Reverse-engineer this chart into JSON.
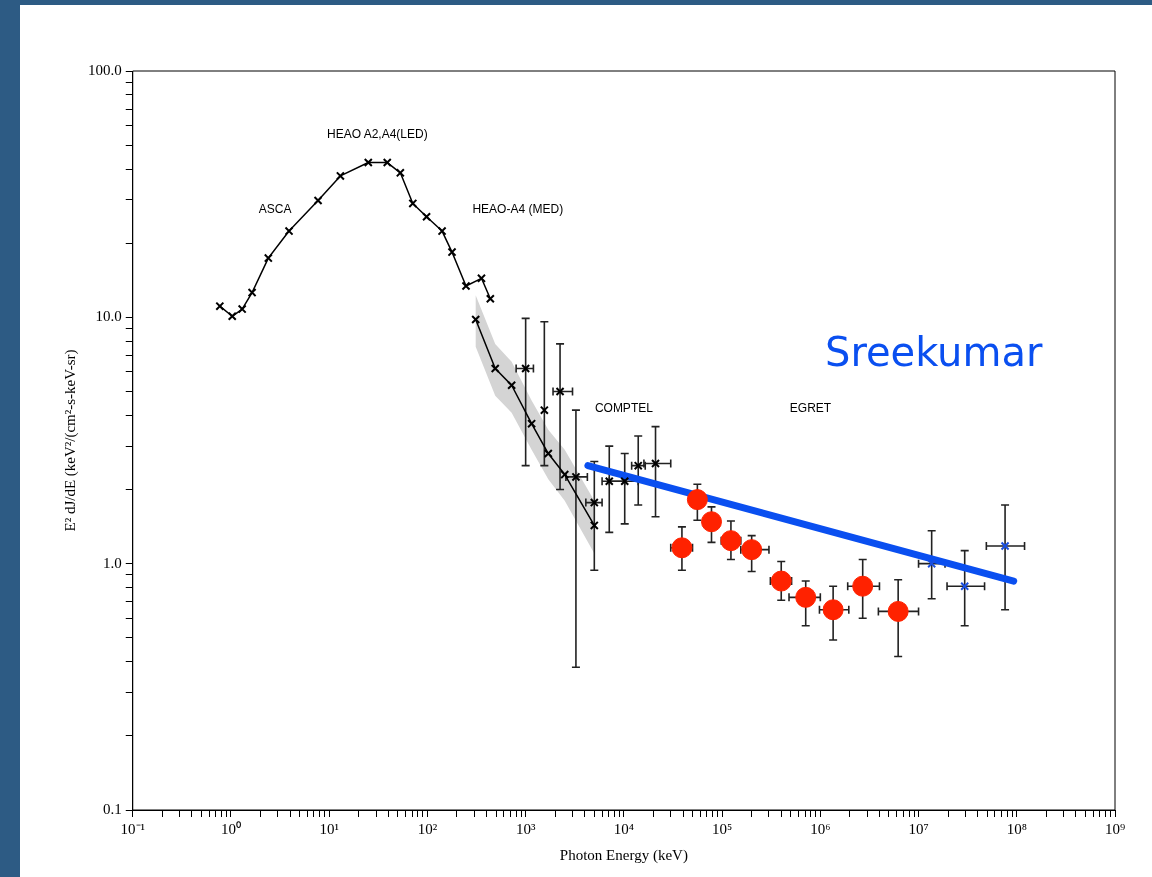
{
  "chart_data": {
    "type": "scatter",
    "xlabel": "Photon Energy (keV)",
    "ylabel": "E² dJ/dE (keV²/(cm²-s-keV-sr)",
    "log": "xy",
    "grid": false,
    "legend": false,
    "xlim": [
      0.1,
      1000000000
    ],
    "ylim": [
      0.1,
      100
    ],
    "xticks": [
      {
        "value": 0.1,
        "label": "10⁻¹"
      },
      {
        "value": 0.2,
        "label": null
      },
      {
        "value": 0.3,
        "label": null
      },
      {
        "value": 0.4,
        "label": null
      },
      {
        "value": 0.5,
        "label": null
      },
      {
        "value": 0.6,
        "label": null
      },
      {
        "value": 0.7,
        "label": null
      },
      {
        "value": 0.8,
        "label": null
      },
      {
        "value": 0.9,
        "label": null
      },
      {
        "value": 1,
        "label": "10⁰"
      },
      {
        "value": 2,
        "label": null
      },
      {
        "value": 3,
        "label": null
      },
      {
        "value": 4,
        "label": null
      },
      {
        "value": 5,
        "label": null
      },
      {
        "value": 6,
        "label": null
      },
      {
        "value": 7,
        "label": null
      },
      {
        "value": 8,
        "label": null
      },
      {
        "value": 9,
        "label": null
      },
      {
        "value": 10,
        "label": "10¹"
      },
      {
        "value": 20,
        "label": null
      },
      {
        "value": 30,
        "label": null
      },
      {
        "value": 40,
        "label": null
      },
      {
        "value": 50,
        "label": null
      },
      {
        "value": 60,
        "label": null
      },
      {
        "value": 70,
        "label": null
      },
      {
        "value": 80,
        "label": null
      },
      {
        "value": 90,
        "label": null
      },
      {
        "value": 100,
        "label": "10²"
      },
      {
        "value": 200,
        "label": null
      },
      {
        "value": 300,
        "label": null
      },
      {
        "value": 400,
        "label": null
      },
      {
        "value": 500,
        "label": null
      },
      {
        "value": 600,
        "label": null
      },
      {
        "value": 700,
        "label": null
      },
      {
        "value": 800,
        "label": null
      },
      {
        "value": 900,
        "label": null
      },
      {
        "value": 1000,
        "label": "10³"
      },
      {
        "value": 2000,
        "label": null
      },
      {
        "value": 3000,
        "label": null
      },
      {
        "value": 4000,
        "label": null
      },
      {
        "value": 5000,
        "label": null
      },
      {
        "value": 6000,
        "label": null
      },
      {
        "value": 7000,
        "label": null
      },
      {
        "value": 8000,
        "label": null
      },
      {
        "value": 9000,
        "label": null
      },
      {
        "value": 10000,
        "label": "10⁴"
      },
      {
        "value": 20000,
        "label": null
      },
      {
        "value": 30000,
        "label": null
      },
      {
        "value": 40000,
        "label": null
      },
      {
        "value": 50000,
        "label": null
      },
      {
        "value": 60000,
        "label": null
      },
      {
        "value": 70000,
        "label": null
      },
      {
        "value": 80000,
        "label": null
      },
      {
        "value": 90000,
        "label": null
      },
      {
        "value": 100000,
        "label": "10⁵"
      },
      {
        "value": 200000,
        "label": null
      },
      {
        "value": 300000,
        "label": null
      },
      {
        "value": 400000,
        "label": null
      },
      {
        "value": 500000,
        "label": null
      },
      {
        "value": 600000,
        "label": null
      },
      {
        "value": 700000,
        "label": null
      },
      {
        "value": 800000,
        "label": null
      },
      {
        "value": 900000,
        "label": null
      },
      {
        "value": 1000000,
        "label": "10⁶"
      },
      {
        "value": 2000000,
        "label": null
      },
      {
        "value": 3000000,
        "label": null
      },
      {
        "value": 4000000,
        "label": null
      },
      {
        "value": 5000000,
        "label": null
      },
      {
        "value": 6000000,
        "label": null
      },
      {
        "value": 7000000,
        "label": null
      },
      {
        "value": 8000000,
        "label": null
      },
      {
        "value": 9000000,
        "label": null
      },
      {
        "value": 10000000,
        "label": "10⁷"
      },
      {
        "value": 20000000,
        "label": null
      },
      {
        "value": 30000000,
        "label": null
      },
      {
        "value": 40000000,
        "label": null
      },
      {
        "value": 50000000,
        "label": null
      },
      {
        "value": 60000000,
        "label": null
      },
      {
        "value": 70000000,
        "label": null
      },
      {
        "value": 80000000,
        "label": null
      },
      {
        "value": 90000000,
        "label": null
      },
      {
        "value": 100000000,
        "label": "10⁸"
      },
      {
        "value": 200000000,
        "label": null
      },
      {
        "value": 300000000,
        "label": null
      },
      {
        "value": 400000000,
        "label": null
      },
      {
        "value": 500000000,
        "label": null
      },
      {
        "value": 600000000,
        "label": null
      },
      {
        "value": 700000000,
        "label": null
      },
      {
        "value": 800000000,
        "label": null
      },
      {
        "value": 900000000,
        "label": null
      },
      {
        "value": 1000000000,
        "label": "10⁹"
      }
    ],
    "yticks": [
      {
        "value": 0.1,
        "label": "0.1"
      },
      {
        "value": 0.2,
        "label": null
      },
      {
        "value": 0.3,
        "label": null
      },
      {
        "value": 0.4,
        "label": null
      },
      {
        "value": 0.5,
        "label": null
      },
      {
        "value": 0.6,
        "label": null
      },
      {
        "value": 0.7,
        "label": null
      },
      {
        "value": 0.8,
        "label": null
      },
      {
        "value": 0.9,
        "label": null
      },
      {
        "value": 1,
        "label": "1.0"
      },
      {
        "value": 2,
        "label": null
      },
      {
        "value": 3,
        "label": null
      },
      {
        "value": 4,
        "label": null
      },
      {
        "value": 5,
        "label": null
      },
      {
        "value": 6,
        "label": null
      },
      {
        "value": 7,
        "label": null
      },
      {
        "value": 8,
        "label": null
      },
      {
        "value": 9,
        "label": null
      },
      {
        "value": 10,
        "label": "10.0"
      },
      {
        "value": 20,
        "label": null
      },
      {
        "value": 30,
        "label": null
      },
      {
        "value": 40,
        "label": null
      },
      {
        "value": 50,
        "label": null
      },
      {
        "value": 60,
        "label": null
      },
      {
        "value": 70,
        "label": null
      },
      {
        "value": 80,
        "label": null
      },
      {
        "value": 90,
        "label": null
      },
      {
        "value": 100,
        "label": "100.0"
      }
    ],
    "annotations": [
      "ASCA",
      "HEAO A2,A4(LED)",
      "HEAO-A4 (MED)",
      "COMPTEL",
      "EGRET"
    ],
    "series": [
      {
        "type": "line",
        "color": "#000000",
        "marker": "cross",
        "x": [
          0.77,
          1.03,
          1.3,
          1.64,
          2.4,
          3.9,
          7.7,
          13,
          25,
          39,
          53,
          71,
          98,
          141,
          178,
          247,
          355,
          437
        ],
        "values": [
          11.1,
          10.1,
          10.8,
          12.6,
          17.4,
          22.4,
          29.8,
          37.5,
          42.5,
          42.5,
          38.6,
          29.0,
          25.6,
          22.4,
          18.4,
          13.4,
          14.4,
          11.9
        ]
      },
      {
        "type": "line",
        "color": "#000000",
        "marker": "cross",
        "x": [
          310,
          490,
          720,
          1150,
          1700,
          2500,
          5000
        ],
        "values": [
          9.8,
          6.2,
          5.3,
          3.7,
          2.8,
          2.3,
          1.43
        ],
        "lower": [
          7.6,
          4.8,
          4.1,
          2.9,
          2.2,
          1.8,
          1.1
        ],
        "upper": [
          12.3,
          7.8,
          6.6,
          4.6,
          3.5,
          2.9,
          1.8
        ]
      },
      {
        "color": "#000000",
        "marker": "cross",
        "x": [
          1000,
          1550,
          2240,
          3250,
          5000,
          7100,
          10200,
          14000,
          21000
        ],
        "values": [
          6.2,
          4.2,
          5.0,
          2.25,
          1.77,
          2.16,
          2.16,
          2.5,
          2.55
        ],
        "errors": [
          [
            2.5,
            9.9
          ],
          [
            2.5,
            9.6
          ],
          [
            2.0,
            7.8
          ],
          [
            0.38,
            4.2
          ],
          [
            0.94,
            2.6
          ],
          [
            1.34,
            3.0
          ],
          [
            1.45,
            2.8
          ],
          [
            1.73,
            3.3
          ],
          [
            1.55,
            3.6
          ]
        ],
        "xerrors": [
          [
            800,
            1200
          ],
          null,
          [
            1900,
            3000
          ],
          [
            2570,
            4250
          ],
          [
            4100,
            6000
          ],
          [
            6000,
            10200
          ],
          [
            7100,
            14000
          ],
          [
            12000,
            16500
          ],
          [
            16000,
            30000
          ]
        ]
      },
      {
        "color": "#ff2200",
        "marker": "circle",
        "x": [
          39000,
          56000,
          78000,
          123000,
          200000,
          400000,
          710000,
          1350000,
          2700000,
          6200000
        ],
        "values": [
          1.16,
          1.82,
          1.48,
          1.24,
          1.14,
          0.85,
          0.73,
          0.65,
          0.81,
          0.64
        ],
        "errors": [
          [
            0.94,
            1.41
          ],
          [
            1.5,
            2.1
          ],
          [
            1.22,
            1.7
          ],
          [
            1.04,
            1.49
          ],
          [
            0.93,
            1.3
          ],
          [
            0.71,
            1.02
          ],
          [
            0.56,
            0.85
          ],
          [
            0.49,
            0.81
          ],
          [
            0.6,
            1.04
          ],
          [
            0.42,
            0.86
          ]
        ],
        "xerrors": [
          [
            30000,
            50000
          ],
          null,
          null,
          [
            98000,
            155000
          ],
          [
            155000,
            300000
          ],
          [
            310000,
            510000
          ],
          [
            480000,
            1000000
          ],
          [
            980000,
            1950000
          ],
          [
            1900000,
            4000000
          ],
          [
            3900000,
            10000000
          ]
        ]
      },
      {
        "color": "#1a4fe0",
        "marker": "cross",
        "x": [
          13600000,
          29500000,
          76000000
        ],
        "values": [
          1.0,
          0.81,
          1.18
        ],
        "errors": [
          [
            0.72,
            1.36
          ],
          [
            0.56,
            1.13
          ],
          [
            0.65,
            1.73
          ]
        ],
        "xerrors": [
          [
            10000000,
            18600000
          ],
          [
            19500000,
            47000000
          ],
          [
            49000000,
            120000000
          ]
        ]
      },
      {
        "type": "line",
        "name": "Sreekumar",
        "color": "#0a4ff0",
        "marker": "none",
        "x": [
          4300,
          93000000
        ],
        "values": [
          2.5,
          0.85
        ]
      }
    ]
  }
}
